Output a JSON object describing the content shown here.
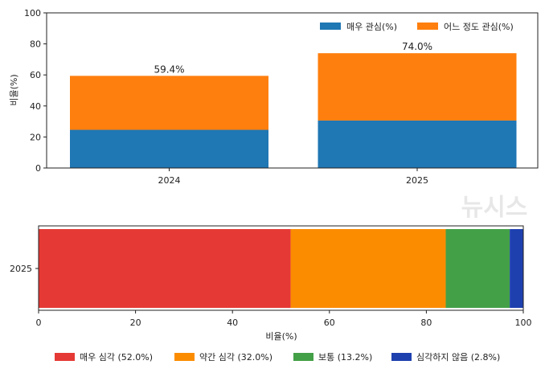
{
  "chart_data": [
    {
      "type": "bar",
      "stacked": true,
      "orientation": "vertical",
      "categories": [
        "2024",
        "2025"
      ],
      "series": [
        {
          "name": "매우 관심(%)",
          "values": [
            24.6,
            30.6
          ],
          "color": "#1f77b4"
        },
        {
          "name": "어느 정도 관심(%)",
          "values": [
            34.8,
            43.4
          ],
          "color": "#ff7f0e"
        }
      ],
      "totals_labels": [
        "59.4%",
        "74.0%"
      ],
      "ylabel": "비율(%)",
      "ylim": [
        0,
        100
      ],
      "yticks": [
        "0",
        "20",
        "40",
        "60",
        "80",
        "100"
      ],
      "legend": "top-right",
      "grid": false
    },
    {
      "type": "bar",
      "stacked": true,
      "orientation": "horizontal",
      "categories": [
        "2025"
      ],
      "series": [
        {
          "name": "매우 심각 (52.0%)",
          "values": [
            52.0
          ],
          "color": "#e53935"
        },
        {
          "name": "약간 심각 (32.0%)",
          "values": [
            32.0
          ],
          "color": "#fb8c00"
        },
        {
          "name": "보통 (13.2%)",
          "values": [
            13.2
          ],
          "color": "#43a047"
        },
        {
          "name": "심각하지 않음 (2.8%)",
          "values": [
            2.8
          ],
          "color": "#1e40af"
        }
      ],
      "xlabel": "비율(%)",
      "xlim": [
        0,
        100
      ],
      "xticks": [
        "0",
        "20",
        "40",
        "60",
        "80",
        "100"
      ],
      "legend": "bottom",
      "grid": false
    }
  ],
  "watermark": "뉴시스"
}
